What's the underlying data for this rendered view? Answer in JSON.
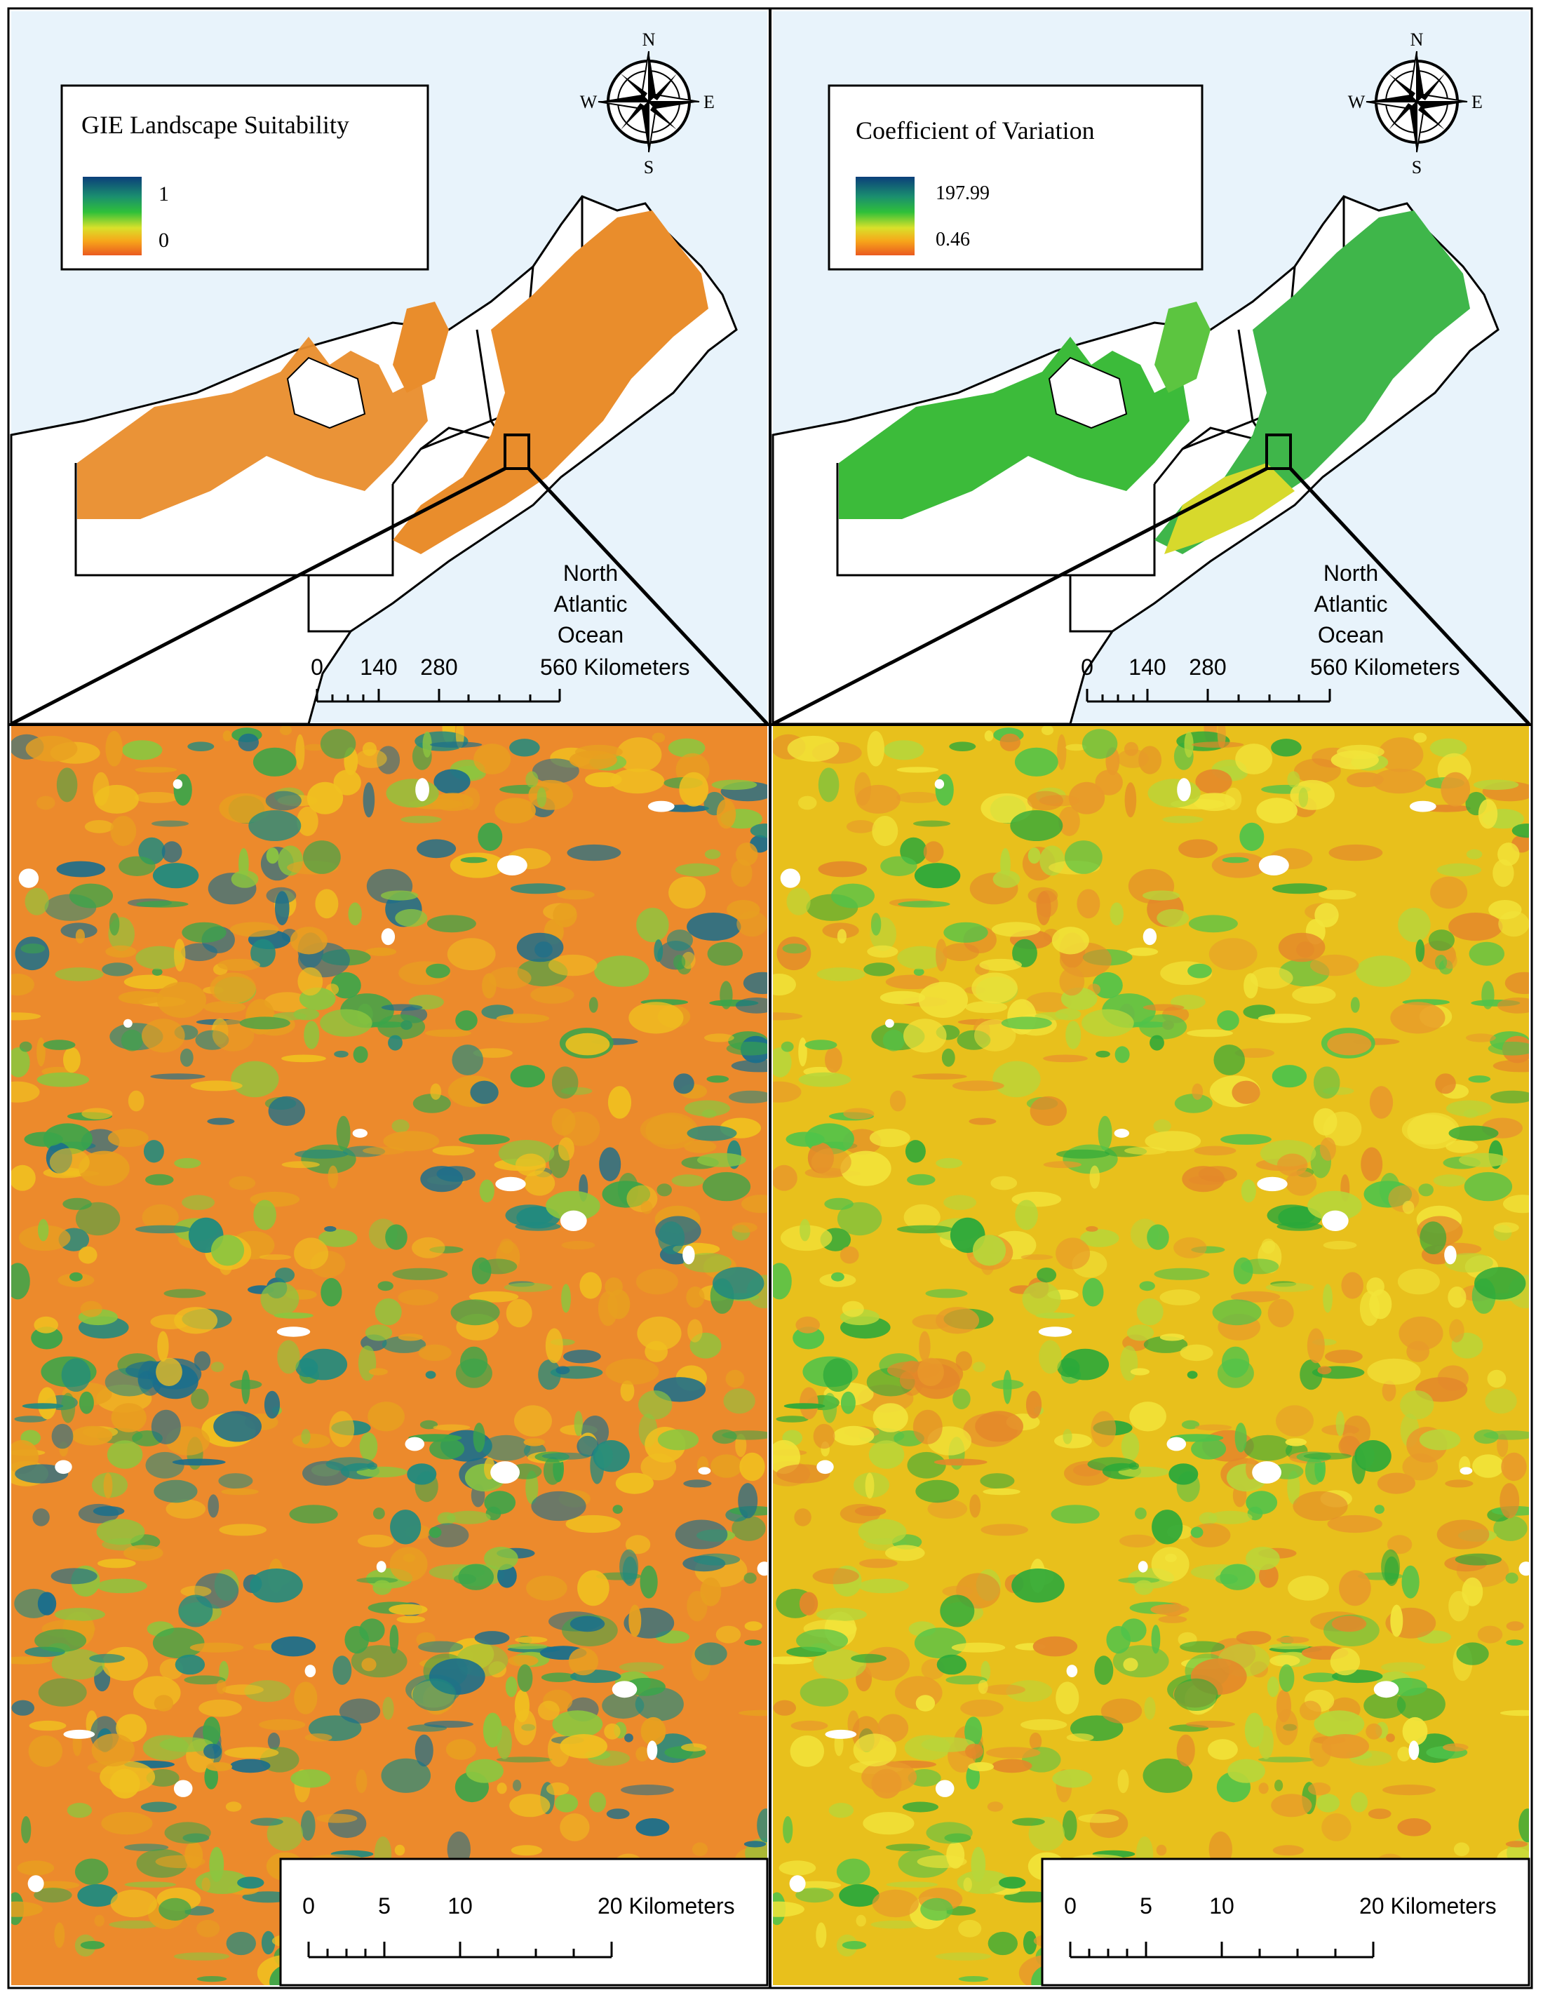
{
  "panels": [
    {
      "legend": {
        "title": "GIE Landscape Suitability",
        "high": "1",
        "low": "0"
      },
      "label_ocean": [
        "North",
        "Atlantic",
        "Ocean"
      ],
      "scale_overview": {
        "labels": [
          "0",
          "140",
          "280",
          "560 Kilometers"
        ]
      },
      "scale_detail": {
        "labels": [
          "0",
          "5",
          "10",
          "20 Kilometers"
        ]
      },
      "detail_mix": {
        "base": "#ec8a2c",
        "patches": [
          "#e8a020",
          "#f0c020",
          "#8cc63f",
          "#3aa54a",
          "#1f8a80",
          "#1a6e8c"
        ]
      }
    },
    {
      "legend": {
        "title": "Coefficient of Variation",
        "high": "197.99",
        "low": "0.46"
      },
      "label_ocean": [
        "North",
        "Atlantic",
        "Ocean"
      ],
      "scale_overview": {
        "labels": [
          "0",
          "140",
          "280",
          "560 Kilometers"
        ]
      },
      "scale_detail": {
        "labels": [
          "0",
          "5",
          "10",
          "20 Kilometers"
        ]
      },
      "detail_mix": {
        "base": "#e8c01c",
        "patches": [
          "#f2e43a",
          "#e89a2a",
          "#b7d63a",
          "#4fc34a",
          "#2aa83a",
          "#e4882a"
        ]
      }
    }
  ],
  "compass": {
    "n": "N",
    "s": "S",
    "e": "E",
    "w": "W"
  },
  "colors": {
    "ocean": "#e8f3fb",
    "land": "#ffffff",
    "border": "#000000",
    "ramp": [
      "#0b3f7a",
      "#1a8e6f",
      "#2fc03a",
      "#d9e12a",
      "#f7a51a",
      "#ea5a20"
    ]
  }
}
